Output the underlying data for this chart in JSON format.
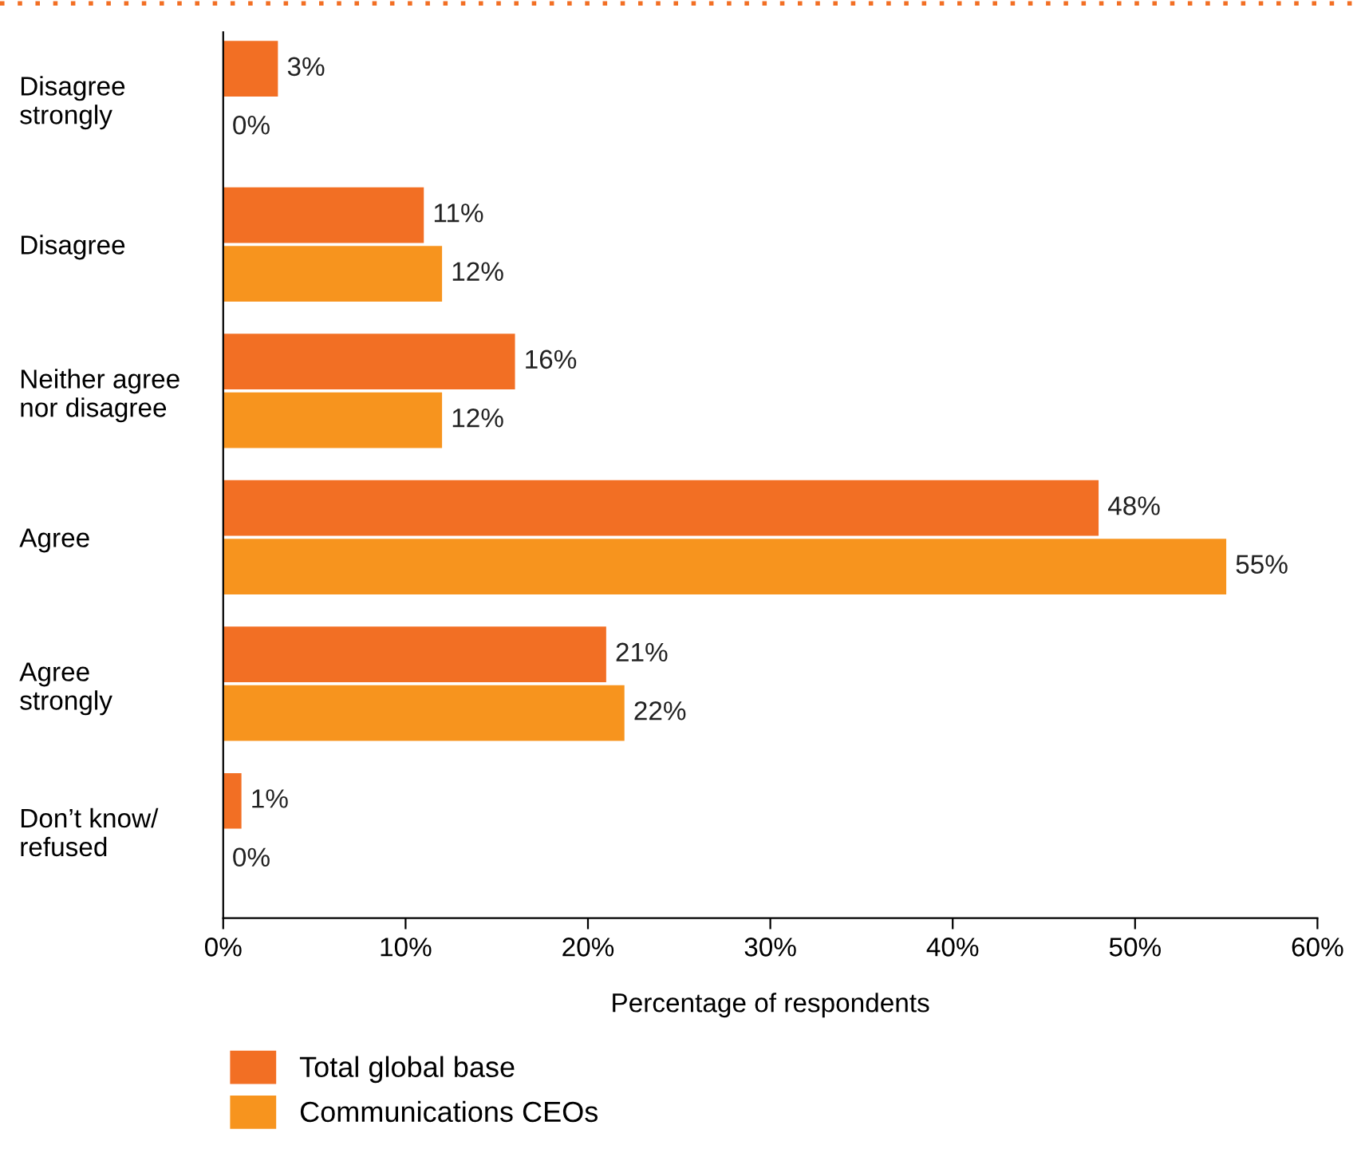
{
  "chart_data": {
    "type": "bar",
    "orientation": "horizontal",
    "categories": [
      "Disagree\nstrongly",
      "Disagree",
      "Neither agree\nnor disagree",
      "Agree",
      "Agree\nstrongly",
      "Don’t know/\nrefused"
    ],
    "series": [
      {
        "name": "Total global base",
        "color": "#f26f24",
        "values": [
          3,
          11,
          16,
          48,
          21,
          1
        ],
        "value_labels": [
          "3%",
          "11%",
          "16%",
          "48%",
          "21%",
          "1%"
        ]
      },
      {
        "name": "Communications CEOs",
        "color": "#f7941e",
        "values": [
          0,
          12,
          12,
          55,
          22,
          0
        ],
        "value_labels": [
          "0%",
          "12%",
          "12%",
          "55%",
          "22%",
          "0%"
        ]
      }
    ],
    "xlabel": "Percentage of respondents",
    "xlim": [
      0,
      60
    ],
    "xticks": [
      {
        "value": 0,
        "label": "0%"
      },
      {
        "value": 10,
        "label": "10%"
      },
      {
        "value": 20,
        "label": "20%"
      },
      {
        "value": 30,
        "label": "30%"
      },
      {
        "value": 40,
        "label": "40%"
      },
      {
        "value": 50,
        "label": "50%"
      },
      {
        "value": 60,
        "label": "60%"
      }
    ],
    "grid": false,
    "legend": "bottom left"
  }
}
